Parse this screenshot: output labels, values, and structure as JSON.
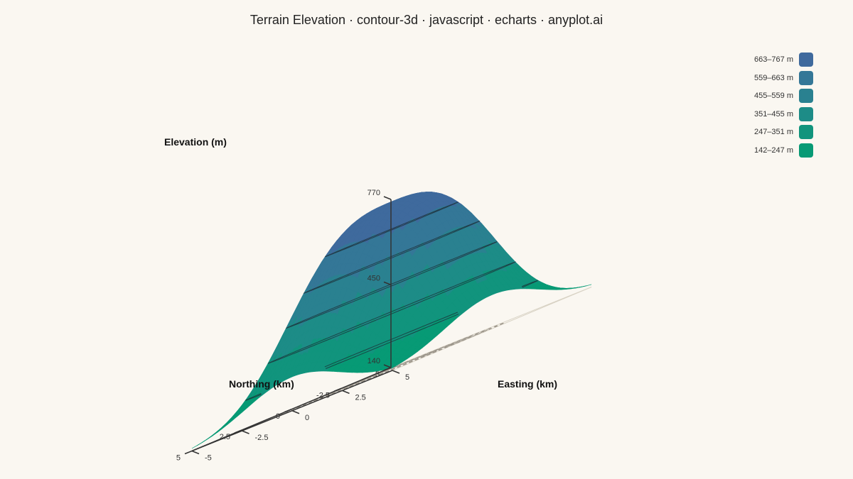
{
  "title": "Terrain Elevation · contour-3d · javascript · echarts · anyplot.ai",
  "chart_data": {
    "type": "surface-3d-contour",
    "title": "Terrain Elevation · contour-3d · javascript · echarts · anyplot.ai",
    "xlabel": "Easting (km)",
    "ylabel": "Northing (km)",
    "zlabel": "Elevation (m)",
    "x_ticks": [
      "-5",
      "-2.5",
      "0",
      "2.5",
      "5"
    ],
    "y_ticks": [
      "-5",
      "-2.5",
      "0",
      "2.5",
      "5"
    ],
    "z_ticks": [
      "140",
      "450",
      "770"
    ],
    "xlim": [
      -5,
      5
    ],
    "ylim": [
      -5,
      5
    ],
    "zlim": [
      140,
      770
    ],
    "legend": [
      {
        "label": "663–767 m",
        "color": "#3f6a9d"
      },
      {
        "label": "559–663 m",
        "color": "#347797"
      },
      {
        "label": "455–559 m",
        "color": "#2a8190"
      },
      {
        "label": "351–455 m",
        "color": "#1d8c87"
      },
      {
        "label": "247–351 m",
        "color": "#11947d"
      },
      {
        "label": "142–247 m",
        "color": "#079a75"
      }
    ],
    "legend_position": "top-right",
    "contour_levels": [
      247,
      351,
      455,
      559,
      663
    ]
  }
}
